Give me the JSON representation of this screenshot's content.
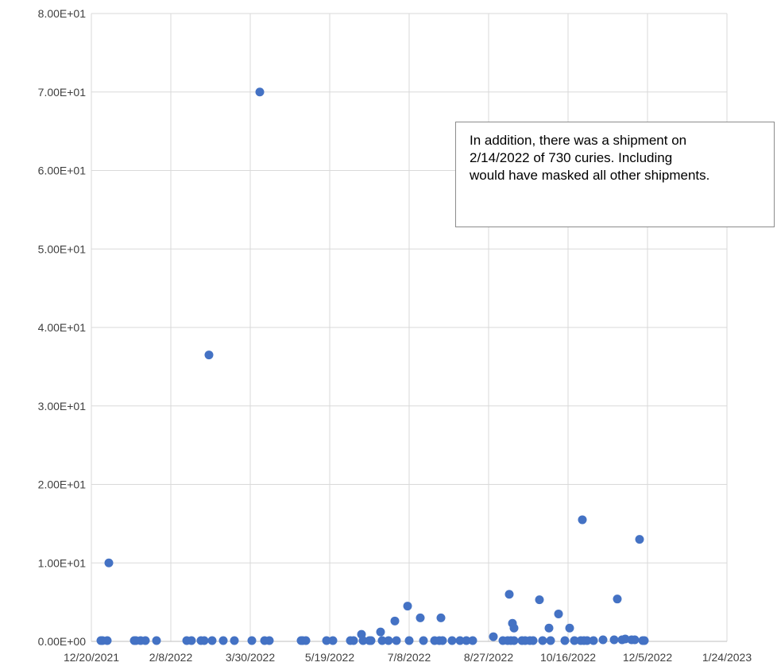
{
  "chart_data": {
    "type": "scatter",
    "title": "",
    "xlabel": "",
    "ylabel": "",
    "x_axis": {
      "type": "date",
      "min": "2021-12-20",
      "max": "2023-01-24",
      "tick_labels": [
        "12/20/2021",
        "2/8/2022",
        "3/30/2022",
        "5/19/2022",
        "7/8/2022",
        "8/27/2022",
        "10/16/2022",
        "12/5/2022",
        "1/24/2023"
      ]
    },
    "y_axis": {
      "min": 0,
      "max": 80,
      "tick_labels": [
        "0.00E+00",
        "1.00E+01",
        "2.00E+01",
        "3.00E+01",
        "4.00E+01",
        "5.00E+01",
        "6.00E+01",
        "7.00E+01",
        "8.00E+01"
      ]
    },
    "grid": true,
    "marker_color": "#4472c4",
    "series": [
      {
        "points": [
          [
            "2021-12-26",
            0.1
          ],
          [
            "2021-12-27",
            0.1
          ],
          [
            "2021-12-30",
            0.1
          ],
          [
            "2021-12-31",
            10.0
          ],
          [
            "2022-01-16",
            0.1
          ],
          [
            "2022-01-17",
            0.1
          ],
          [
            "2022-01-20",
            0.1
          ],
          [
            "2022-01-23",
            0.1
          ],
          [
            "2022-01-30",
            0.1
          ],
          [
            "2022-02-18",
            0.1
          ],
          [
            "2022-02-21",
            0.1
          ],
          [
            "2022-02-27",
            0.1
          ],
          [
            "2022-03-01",
            0.1
          ],
          [
            "2022-03-04",
            36.5
          ],
          [
            "2022-03-06",
            0.1
          ],
          [
            "2022-03-13",
            0.1
          ],
          [
            "2022-03-20",
            0.1
          ],
          [
            "2022-03-31",
            0.1
          ],
          [
            "2022-04-05",
            70.0
          ],
          [
            "2022-04-08",
            0.1
          ],
          [
            "2022-04-11",
            0.1
          ],
          [
            "2022-05-01",
            0.1
          ],
          [
            "2022-05-02",
            0.1
          ],
          [
            "2022-05-04",
            0.1
          ],
          [
            "2022-05-17",
            0.1
          ],
          [
            "2022-05-21",
            0.1
          ],
          [
            "2022-06-01",
            0.1
          ],
          [
            "2022-06-03",
            0.1
          ],
          [
            "2022-06-08",
            0.9
          ],
          [
            "2022-06-09",
            0.1
          ],
          [
            "2022-06-13",
            0.1
          ],
          [
            "2022-06-14",
            0.1
          ],
          [
            "2022-06-20",
            1.2
          ],
          [
            "2022-06-21",
            0.1
          ],
          [
            "2022-06-25",
            0.1
          ],
          [
            "2022-06-29",
            2.6
          ],
          [
            "2022-06-30",
            0.1
          ],
          [
            "2022-07-07",
            4.5
          ],
          [
            "2022-07-08",
            0.1
          ],
          [
            "2022-07-15",
            3.0
          ],
          [
            "2022-07-17",
            0.1
          ],
          [
            "2022-07-24",
            0.1
          ],
          [
            "2022-07-27",
            0.1
          ],
          [
            "2022-07-28",
            3.0
          ],
          [
            "2022-07-29",
            0.1
          ],
          [
            "2022-08-04",
            0.1
          ],
          [
            "2022-08-09",
            0.1
          ],
          [
            "2022-08-13",
            0.1
          ],
          [
            "2022-08-17",
            0.1
          ],
          [
            "2022-08-30",
            0.6
          ],
          [
            "2022-09-05",
            0.1
          ],
          [
            "2022-09-08",
            0.1
          ],
          [
            "2022-09-09",
            6.0
          ],
          [
            "2022-09-10",
            0.1
          ],
          [
            "2022-09-11",
            2.3
          ],
          [
            "2022-09-12",
            1.7
          ],
          [
            "2022-09-12",
            0.1
          ],
          [
            "2022-09-17",
            0.1
          ],
          [
            "2022-09-19",
            0.1
          ],
          [
            "2022-09-22",
            0.1
          ],
          [
            "2022-09-24",
            0.1
          ],
          [
            "2022-09-28",
            5.3
          ],
          [
            "2022-09-30",
            0.1
          ],
          [
            "2022-10-04",
            1.7
          ],
          [
            "2022-10-05",
            0.1
          ],
          [
            "2022-10-10",
            3.5
          ],
          [
            "2022-10-14",
            0.1
          ],
          [
            "2022-10-17",
            1.7
          ],
          [
            "2022-10-20",
            0.1
          ],
          [
            "2022-10-24",
            0.1
          ],
          [
            "2022-10-25",
            15.5
          ],
          [
            "2022-10-26",
            0.1
          ],
          [
            "2022-10-28",
            0.1
          ],
          [
            "2022-11-01",
            0.1
          ],
          [
            "2022-11-07",
            0.2
          ],
          [
            "2022-11-14",
            0.2
          ],
          [
            "2022-11-16",
            5.4
          ],
          [
            "2022-11-19",
            0.2
          ],
          [
            "2022-11-21",
            0.3
          ],
          [
            "2022-11-25",
            0.2
          ],
          [
            "2022-11-27",
            0.2
          ],
          [
            "2022-11-30",
            13.0
          ],
          [
            "2022-12-02",
            0.1
          ],
          [
            "2022-12-03",
            0.1
          ]
        ]
      }
    ],
    "annotation": {
      "lines": [
        "In addition, there was a shipment on",
        "2/14/2022 of 730 curies. Including",
        "would have masked all other shipments."
      ]
    }
  }
}
